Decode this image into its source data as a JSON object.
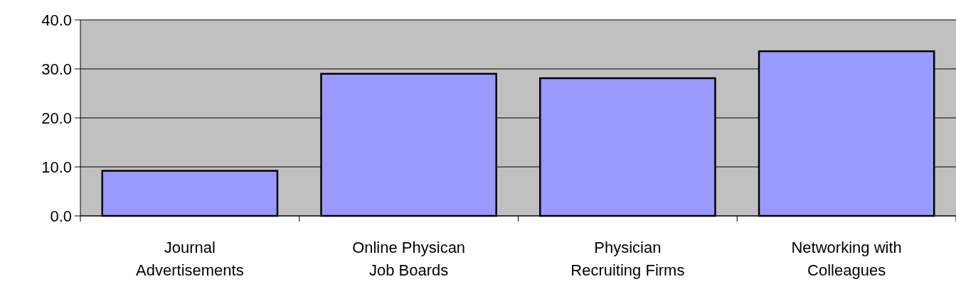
{
  "chart_data": {
    "type": "bar",
    "categories": [
      "Journal Advertisements",
      "Online Physican Job Boards",
      "Physician Recruiting Firms",
      "Networking with Colleagues"
    ],
    "values": [
      9.2,
      29.0,
      28.1,
      33.6
    ],
    "color": "#9999ff",
    "ylim": [
      0,
      40
    ],
    "yticks": [
      {
        "value": 0,
        "label": "0.0"
      },
      {
        "value": 10,
        "label": "10.0"
      },
      {
        "value": 20,
        "label": "20.0"
      },
      {
        "value": 30,
        "label": "30.0"
      },
      {
        "value": 40,
        "label": "40.0"
      }
    ],
    "grid": "y"
  }
}
